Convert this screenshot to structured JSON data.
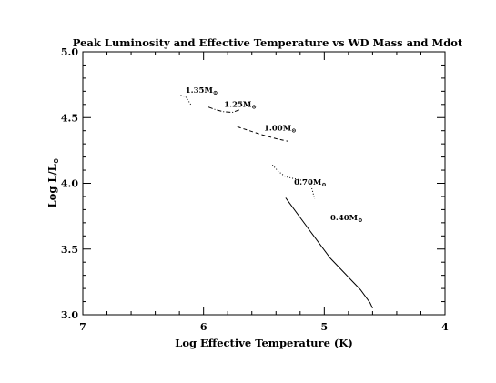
{
  "chart_data": {
    "type": "line",
    "title": "Peak Luminosity and Effective Temperature vs WD Mass and Mdot",
    "xlabel": "Log Effective Temperature (K)",
    "ylabel": "Log L/L",
    "ylabel_symbol": "⊙",
    "xlim": [
      7,
      4
    ],
    "ylim": [
      3.0,
      5.0
    ],
    "x_ticks": [
      7,
      6,
      5,
      4
    ],
    "x_tick_labels": [
      "7",
      "6",
      "5",
      "4"
    ],
    "y_ticks": [
      3.0,
      3.5,
      4.0,
      4.5,
      5.0
    ],
    "y_tick_labels": [
      "3.0",
      "3.5",
      "4.0",
      "4.5",
      "5.0"
    ],
    "grid": false,
    "series": [
      {
        "name": "1.35M",
        "name_symbol": "⊙",
        "dash": "dotted",
        "label_at": [
          6.15,
          4.69
        ],
        "x": [
          6.19,
          6.15,
          6.12,
          6.1
        ],
        "y": [
          4.67,
          4.66,
          4.62,
          4.59
        ]
      },
      {
        "name": "1.25M",
        "name_symbol": "⊙",
        "dash": "dashdot",
        "label_at": [
          5.83,
          4.58
        ],
        "x": [
          5.96,
          5.9,
          5.84,
          5.76,
          5.7
        ],
        "y": [
          4.58,
          4.56,
          4.545,
          4.54,
          4.56
        ]
      },
      {
        "name": "1.00M",
        "name_symbol": "⊙",
        "dash": "dashed",
        "label_at": [
          5.5,
          4.4
        ],
        "x": [
          5.72,
          5.62,
          5.52,
          5.4,
          5.3
        ],
        "y": [
          4.43,
          4.4,
          4.37,
          4.34,
          4.32
        ]
      },
      {
        "name": "0.70M",
        "name_symbol": "⊙",
        "dash": "dotted",
        "label_at": [
          5.25,
          3.99
        ],
        "x": [
          5.43,
          5.38,
          5.32,
          5.22,
          5.12,
          5.1,
          5.08
        ],
        "y": [
          4.14,
          4.09,
          4.05,
          4.03,
          4.01,
          3.95,
          3.88
        ]
      },
      {
        "name": "0.40M",
        "name_symbol": "⊙",
        "dash": "solid",
        "label_at": [
          4.95,
          3.72
        ],
        "x": [
          5.32,
          5.12,
          4.95,
          4.7,
          4.62,
          4.6
        ],
        "y": [
          3.89,
          3.64,
          3.43,
          3.19,
          3.09,
          3.05
        ]
      }
    ]
  }
}
